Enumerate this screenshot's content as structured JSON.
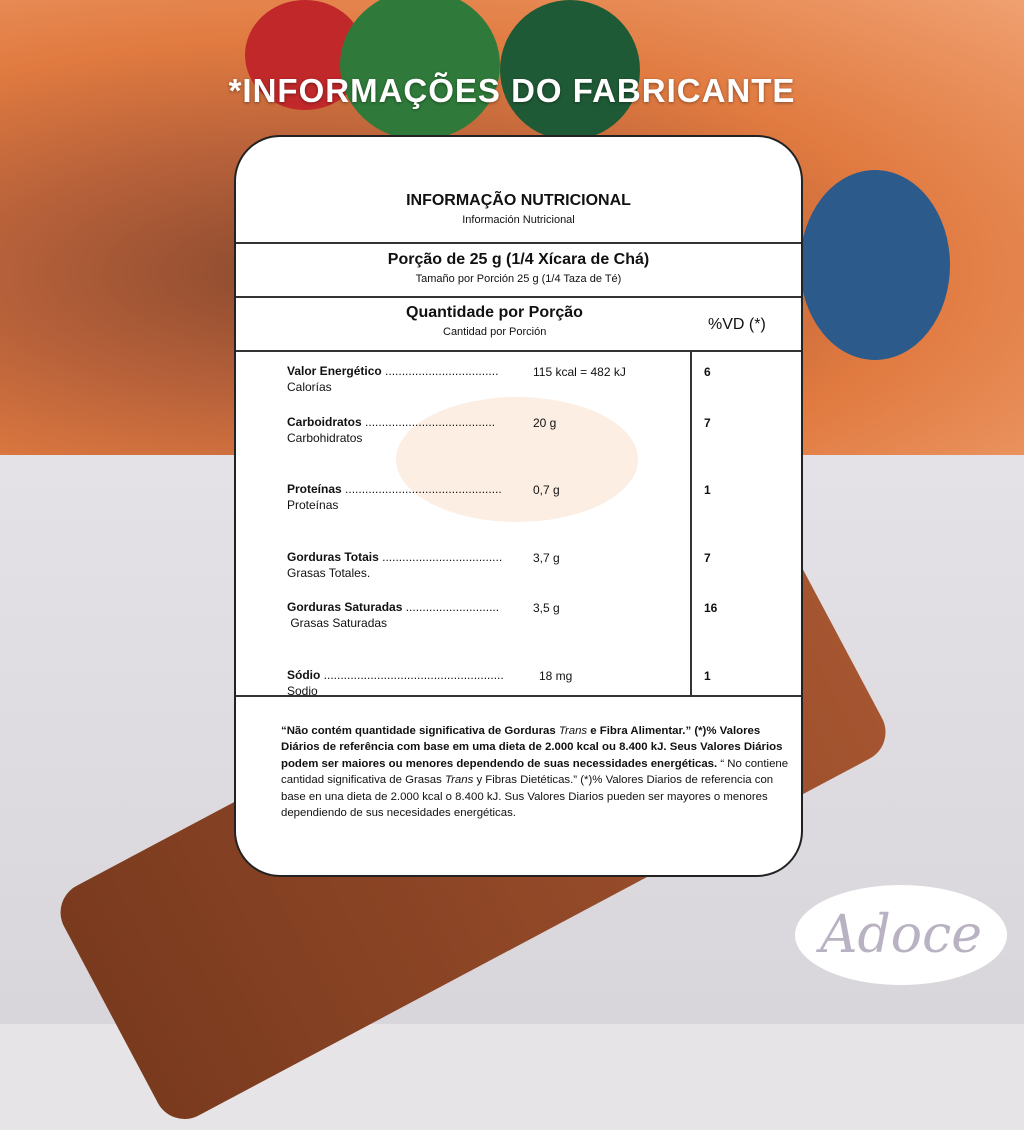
{
  "headline": "*INFORMAÇÕES DO FABRICANTE",
  "logo_text": "Adoce",
  "table": {
    "title": "INFORMAÇÃO NUTRICIONAL",
    "title_es": "Información Nutricional",
    "portion": "Porção de 25 g (1/4 Xícara de Chá)",
    "portion_es": "Tamaño por Porción 25 g (1/4 Taza de Té)",
    "quantity_header": "Quantidade por Porção",
    "quantity_header_es": "Cantidad por Porción",
    "vd_header": "%VD (*)",
    "rows": [
      {
        "name": "Valor Energético",
        "dots": "..................................",
        "name_es": "Calorías",
        "amount": "115 kcal = 482 kJ",
        "vd": "6"
      },
      {
        "name": "Carboidratos",
        "dots": ".......................................",
        "name_es": "Carbohidratos",
        "amount": "20 g",
        "vd": "7"
      },
      {
        "name": "Proteínas",
        "dots": "...............................................",
        "name_es": "Proteínas",
        "amount": "0,7 g",
        "vd": "1"
      },
      {
        "name": "Gorduras  Totais",
        "dots": "....................................",
        "name_es": "Grasas Totales.",
        "amount": "3,7 g",
        "vd": "7"
      },
      {
        "name": "Gorduras  Saturadas",
        "dots": "............................",
        "name_es": " Grasas Saturadas",
        "amount": "3,5 g",
        "vd": "16"
      },
      {
        "name": "Sódio",
        "dots": "......................................................",
        "name_es": "Sodio",
        "amount": "18 mg",
        "vd": "1"
      }
    ],
    "footnote_pt_1": "“Não contém quantidade significativa de Gorduras ",
    "footnote_pt_trans": "Trans",
    "footnote_pt_2": " e Fibra Alimentar.” (*)% Valores Diários de referência com base em uma dieta de 2.000 kcal ou 8.400 kJ. Seus Valores Diários podem ser maiores ou menores dependendo de suas necessidades energéticas.",
    "footnote_es_1": " “ No contiene cantidad significativa de Grasas ",
    "footnote_es_trans": "Trans",
    "footnote_es_2": " y Fibras Dietéticas.” (*)% Valores Diarios de referencia con base en una dieta de 2.000 kcal o 8.400 kJ. Sus Valores Diarios pueden ser mayores o menores dependiendo de sus necesidades energéticas."
  }
}
